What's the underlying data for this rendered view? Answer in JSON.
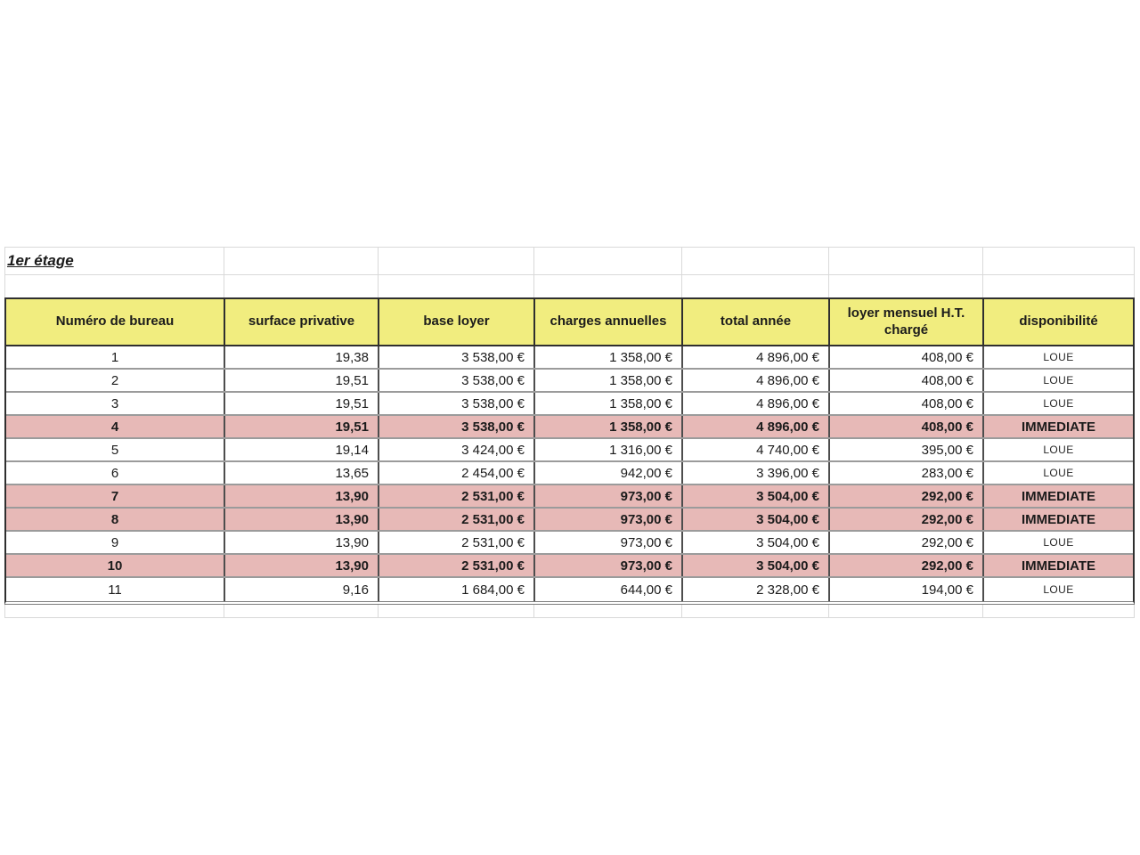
{
  "title": "1er étage",
  "colors": {
    "header_bg": "#f1ed7f",
    "highlight_bg": "#e7b9b7",
    "border_dark": "#2f2f2f",
    "col_line": "#4d4d4d",
    "row_line": "#9b9b9b",
    "grid_faint": "#d9d9d9",
    "text": "#1b1b1b"
  },
  "table": {
    "columns": [
      {
        "label": "Numéro de bureau"
      },
      {
        "label": "surface privative"
      },
      {
        "label": "base loyer"
      },
      {
        "label": "charges annuelles"
      },
      {
        "label": "total année"
      },
      {
        "label": "loyer mensuel H.T. chargé"
      },
      {
        "label": "disponibilité"
      }
    ],
    "rows": [
      {
        "num": "1",
        "surface": "19,38",
        "base": "3 538,00 €",
        "charges": "1 358,00 €",
        "total": "4 896,00 €",
        "monthly": "408,00 €",
        "dispo": "LOUE"
      },
      {
        "num": "2",
        "surface": "19,51",
        "base": "3 538,00 €",
        "charges": "1 358,00 €",
        "total": "4 896,00 €",
        "monthly": "408,00 €",
        "dispo": "LOUE"
      },
      {
        "num": "3",
        "surface": "19,51",
        "base": "3 538,00 €",
        "charges": "1 358,00 €",
        "total": "4 896,00 €",
        "monthly": "408,00 €",
        "dispo": "LOUE"
      },
      {
        "num": "4",
        "surface": "19,51",
        "base": "3 538,00 €",
        "charges": "1 358,00 €",
        "total": "4 896,00 €",
        "monthly": "408,00 €",
        "dispo": "IMMEDIATE",
        "highlighted": true
      },
      {
        "num": "5",
        "surface": "19,14",
        "base": "3 424,00 €",
        "charges": "1 316,00 €",
        "total": "4 740,00 €",
        "monthly": "395,00 €",
        "dispo": "LOUE"
      },
      {
        "num": "6",
        "surface": "13,65",
        "base": "2 454,00 €",
        "charges": "942,00 €",
        "total": "3 396,00 €",
        "monthly": "283,00 €",
        "dispo": "LOUE"
      },
      {
        "num": "7",
        "surface": "13,90",
        "base": "2 531,00 €",
        "charges": "973,00 €",
        "total": "3 504,00 €",
        "monthly": "292,00 €",
        "dispo": "IMMEDIATE",
        "highlighted": true
      },
      {
        "num": "8",
        "surface": "13,90",
        "base": "2 531,00 €",
        "charges": "973,00 €",
        "total": "3 504,00 €",
        "monthly": "292,00 €",
        "dispo": "IMMEDIATE",
        "highlighted": true
      },
      {
        "num": "9",
        "surface": "13,90",
        "base": "2 531,00 €",
        "charges": "973,00 €",
        "total": "3 504,00 €",
        "monthly": "292,00 €",
        "dispo": "LOUE"
      },
      {
        "num": "10",
        "surface": "13,90",
        "base": "2 531,00 €",
        "charges": "973,00 €",
        "total": "3 504,00 €",
        "monthly": "292,00 €",
        "dispo": "IMMEDIATE",
        "highlighted": true
      },
      {
        "num": "11",
        "surface": "9,16",
        "base": "1 684,00 €",
        "charges": "644,00 €",
        "total": "2 328,00 €",
        "monthly": "194,00 €",
        "dispo": "LOUE"
      }
    ]
  }
}
